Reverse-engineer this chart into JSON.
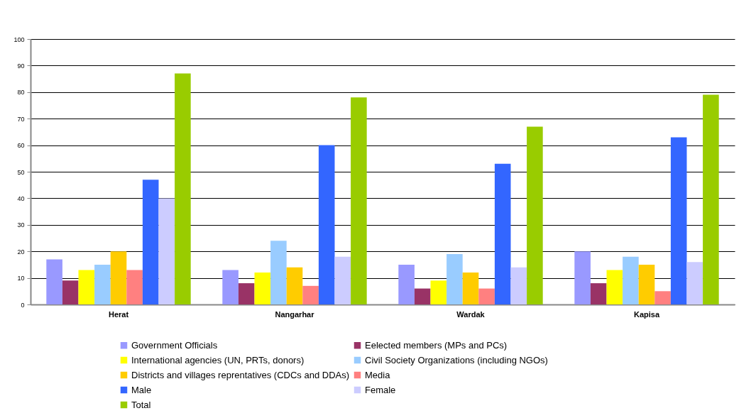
{
  "chart_data": {
    "type": "bar",
    "categories": [
      "Herat",
      "Nangarhar",
      "Wardak",
      "Kapisa"
    ],
    "series": [
      {
        "name": "Government Officials",
        "color": "#9999ff",
        "values": [
          17,
          13,
          15,
          20
        ]
      },
      {
        "name": "Eelected members (MPs and PCs)",
        "color": "#993366",
        "values": [
          9,
          8,
          6,
          8
        ]
      },
      {
        "name": "International agencies (UN, PRTs, donors)",
        "color": "#ffff00",
        "values": [
          13,
          12,
          9,
          13
        ]
      },
      {
        "name": "Civil Society Organizations (including NGOs)",
        "color": "#99ccff",
        "values": [
          15,
          24,
          19,
          18
        ]
      },
      {
        "name": "Districts and villages reprentatives (CDCs and DDAs)",
        "color": "#ffcc00",
        "values": [
          20,
          14,
          12,
          15
        ]
      },
      {
        "name": "Media",
        "color": "#ff8080",
        "values": [
          13,
          7,
          6,
          5
        ]
      },
      {
        "name": "Male",
        "color": "#3366ff",
        "values": [
          47,
          60,
          53,
          63
        ]
      },
      {
        "name": "Female",
        "color": "#ccccff",
        "values": [
          40,
          18,
          14,
          16
        ]
      },
      {
        "name": "Total",
        "color": "#99cc00",
        "values": [
          87,
          78,
          67,
          79
        ]
      }
    ],
    "ylim": [
      0,
      100
    ],
    "yticks": [
      0,
      10,
      20,
      30,
      40,
      50,
      60,
      70,
      80,
      90,
      100
    ],
    "grid": "y",
    "legend": "bottom"
  }
}
